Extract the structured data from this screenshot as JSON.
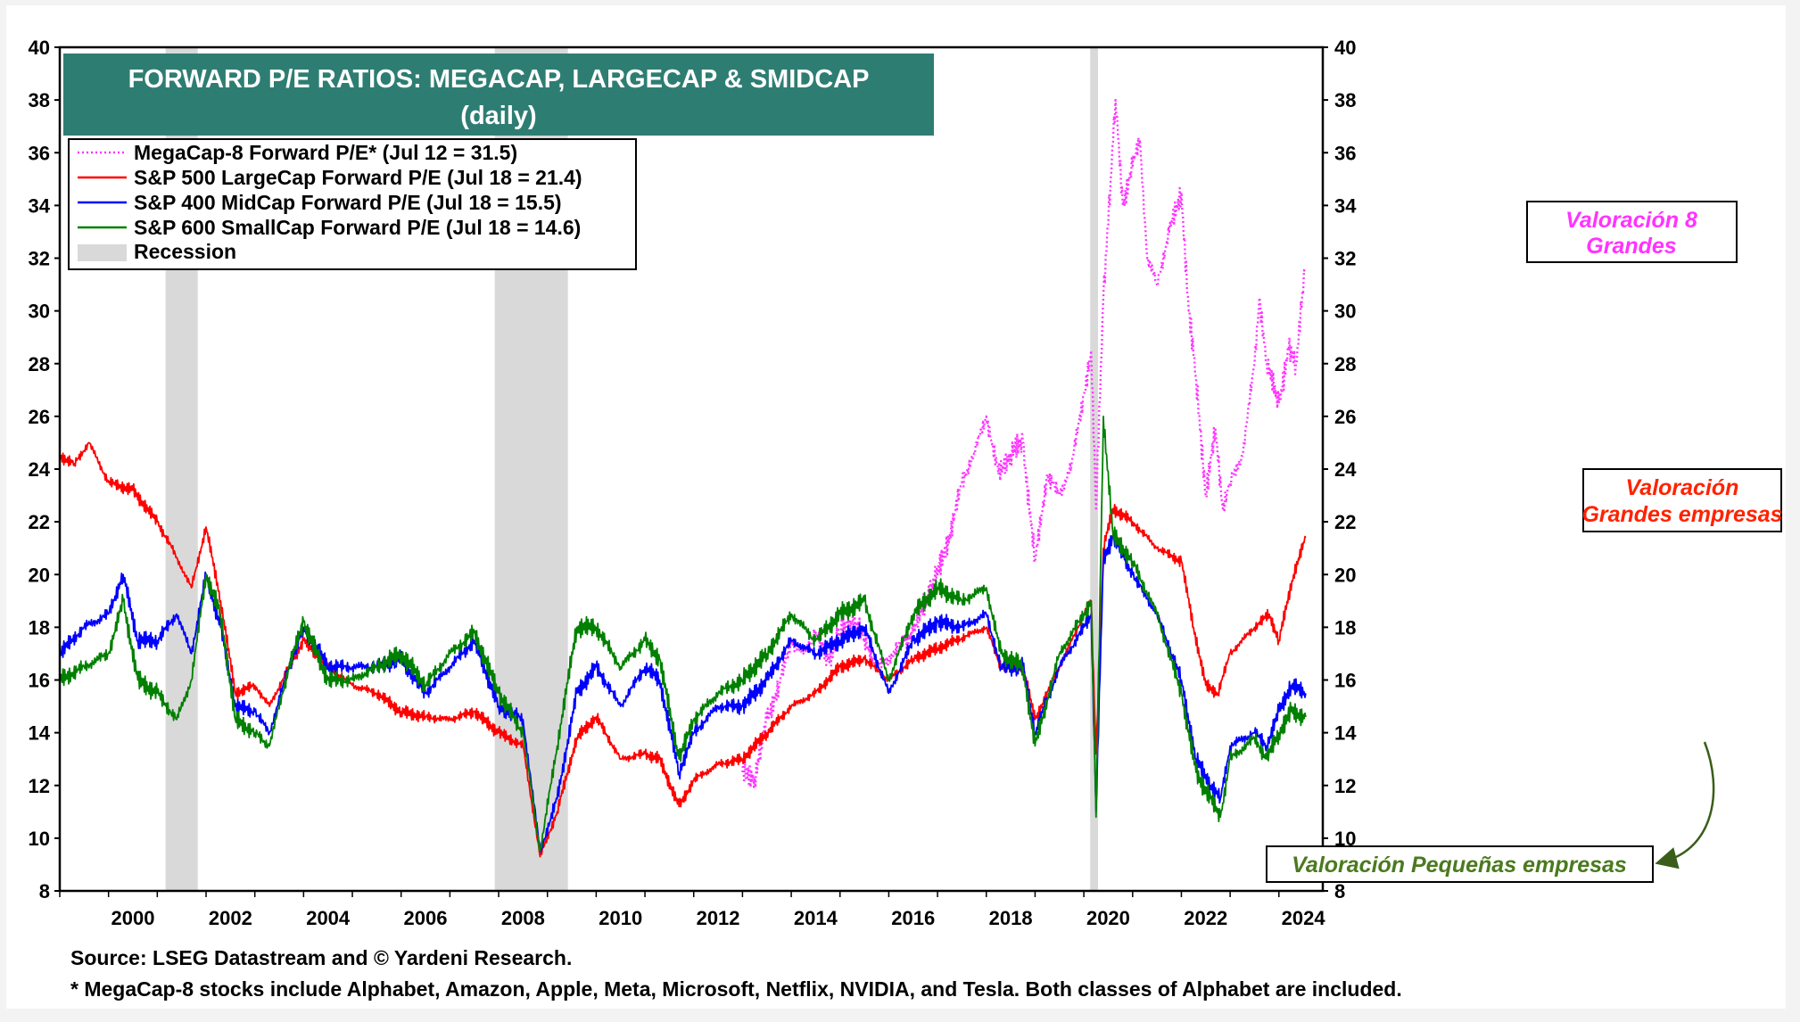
{
  "title_line1": "FORWARD P/E RATIOS: MEGACAP, LARGECAP & SMIDCAP",
  "title_line2": "(daily)",
  "source": "Source: LSEG Datastream and © Yardeni Research.",
  "footnote": "* MegaCap-8 stocks include Alphabet, Amazon, Apple, Meta, Microsoft, Netflix, NVIDIA, and Tesla. Both classes of Alphabet are included.",
  "annotations": {
    "mega": [
      "Valoración 8",
      "Grandes"
    ],
    "large": [
      "Valoración",
      "Grandes empresas"
    ],
    "small": "Valoración Pequeñas empresas"
  },
  "colors": {
    "mega": "#ff33ff",
    "large": "#ff0000",
    "mid": "#0000ff",
    "small": "#008000",
    "recession": "#d9d9d9",
    "title_bg": "#2e7d73",
    "note_mega": "#ff33ff",
    "note_large": "#ff2200",
    "note_small": "#4a7a1e",
    "arrow": "#3a5e1a"
  },
  "chart_data": {
    "type": "line",
    "x_unit": "year",
    "xlim": [
      1999.0,
      2024.9
    ],
    "ylim": [
      8,
      40
    ],
    "y_ticks": [
      8,
      10,
      12,
      14,
      16,
      18,
      20,
      22,
      24,
      26,
      28,
      30,
      32,
      34,
      36,
      38,
      40
    ],
    "x_ticks": [
      2000,
      2002,
      2004,
      2006,
      2008,
      2010,
      2012,
      2014,
      2016,
      2018,
      2020,
      2022,
      2024
    ],
    "grid": false,
    "dual_y_axis": true,
    "legend_position": "top-left",
    "recessions": [
      [
        2001.17,
        2001.83
      ],
      [
        2007.92,
        2009.42
      ],
      [
        2020.13,
        2020.29
      ]
    ],
    "recession_label": "Recession",
    "series": [
      {
        "name": "MegaCap-8 Forward P/E* (Jul 12 = 31.5)",
        "key": "mega",
        "style": "dotted",
        "x": [
          2013.0,
          2013.25,
          2013.5,
          2013.75,
          2014.0,
          2014.25,
          2014.5,
          2014.75,
          2015.0,
          2015.25,
          2015.5,
          2015.75,
          2016.0,
          2016.25,
          2016.5,
          2016.75,
          2017.0,
          2017.25,
          2017.5,
          2017.75,
          2018.0,
          2018.25,
          2018.5,
          2018.75,
          2019.0,
          2019.25,
          2019.5,
          2019.75,
          2020.0,
          2020.15,
          2020.25,
          2020.4,
          2020.55,
          2020.65,
          2020.8,
          2021.0,
          2021.15,
          2021.3,
          2021.5,
          2021.75,
          2022.0,
          2022.15,
          2022.3,
          2022.5,
          2022.7,
          2022.85,
          2023.0,
          2023.25,
          2023.5,
          2023.6,
          2023.75,
          2024.0,
          2024.2,
          2024.35,
          2024.53
        ],
        "y": [
          12.5,
          12.3,
          14.5,
          15.8,
          17.5,
          17.0,
          17.8,
          16.8,
          17.8,
          18.2,
          17.6,
          16.5,
          16.8,
          17.4,
          17.8,
          19.0,
          20.0,
          21.5,
          23.5,
          24.6,
          26.0,
          23.8,
          24.6,
          25.0,
          20.5,
          23.8,
          23.0,
          24.2,
          26.8,
          28.5,
          22.5,
          30.5,
          35.0,
          38.0,
          34.0,
          35.5,
          36.5,
          32.0,
          31.0,
          33.0,
          34.5,
          30.0,
          27.5,
          23.0,
          25.5,
          22.5,
          23.5,
          24.5,
          28.0,
          30.5,
          28.0,
          26.5,
          28.5,
          28.0,
          31.5
        ]
      },
      {
        "name": "S&P 500 LargeCap Forward P/E (Jul 18 = 21.4)",
        "key": "large",
        "style": "solid",
        "x": [
          1999.0,
          1999.3,
          1999.6,
          2000.0,
          2000.5,
          2001.0,
          2001.3,
          2001.7,
          2002.0,
          2002.3,
          2002.6,
          2003.0,
          2003.3,
          2003.7,
          2004.0,
          2004.5,
          2005.0,
          2005.5,
          2006.0,
          2006.5,
          2007.0,
          2007.5,
          2008.0,
          2008.5,
          2008.85,
          2009.2,
          2009.6,
          2010.0,
          2010.5,
          2011.0,
          2011.3,
          2011.7,
          2012.0,
          2012.5,
          2013.0,
          2013.5,
          2014.0,
          2014.5,
          2015.0,
          2015.5,
          2016.0,
          2016.5,
          2017.0,
          2017.5,
          2018.0,
          2018.3,
          2018.75,
          2019.0,
          2019.5,
          2020.0,
          2020.15,
          2020.25,
          2020.4,
          2020.6,
          2021.0,
          2021.5,
          2022.0,
          2022.25,
          2022.5,
          2022.75,
          2023.0,
          2023.5,
          2023.8,
          2024.0,
          2024.3,
          2024.55
        ],
        "y": [
          24.5,
          24.2,
          25.0,
          23.5,
          23.2,
          22.0,
          21.0,
          19.5,
          21.8,
          19.0,
          15.5,
          15.8,
          15.0,
          16.5,
          17.5,
          16.5,
          15.8,
          15.5,
          14.8,
          14.6,
          14.5,
          14.8,
          14.0,
          13.5,
          9.3,
          11.0,
          13.8,
          14.6,
          13.0,
          13.2,
          13.0,
          11.2,
          12.2,
          12.8,
          13.0,
          14.0,
          15.0,
          15.5,
          16.5,
          16.8,
          16.0,
          16.8,
          17.2,
          17.6,
          18.0,
          16.5,
          16.5,
          14.5,
          16.5,
          18.5,
          19.0,
          13.2,
          21.0,
          22.5,
          22.0,
          21.0,
          20.5,
          18.0,
          15.8,
          15.5,
          17.0,
          18.0,
          18.5,
          17.5,
          20.0,
          21.4
        ]
      },
      {
        "name": "S&P 400 MidCap Forward P/E (Jul 18 = 15.5)",
        "key": "mid",
        "style": "solid",
        "x": [
          1999.0,
          1999.5,
          2000.0,
          2000.3,
          2000.6,
          2001.0,
          2001.4,
          2001.7,
          2002.0,
          2002.3,
          2002.6,
          2003.0,
          2003.3,
          2003.7,
          2004.0,
          2004.5,
          2005.0,
          2005.5,
          2006.0,
          2006.5,
          2007.0,
          2007.5,
          2008.0,
          2008.5,
          2008.85,
          2009.2,
          2009.6,
          2010.0,
          2010.5,
          2011.0,
          2011.3,
          2011.7,
          2012.0,
          2012.5,
          2013.0,
          2013.5,
          2014.0,
          2014.5,
          2015.0,
          2015.5,
          2016.0,
          2016.5,
          2017.0,
          2017.5,
          2018.0,
          2018.3,
          2018.75,
          2019.0,
          2019.5,
          2020.0,
          2020.15,
          2020.25,
          2020.4,
          2020.6,
          2021.0,
          2021.5,
          2022.0,
          2022.3,
          2022.6,
          2022.8,
          2023.0,
          2023.5,
          2023.75,
          2024.0,
          2024.25,
          2024.55
        ],
        "y": [
          17.0,
          18.0,
          18.5,
          20.0,
          17.5,
          17.5,
          18.5,
          17.0,
          20.0,
          18.0,
          15.0,
          14.8,
          14.0,
          16.5,
          18.0,
          16.5,
          16.5,
          16.5,
          16.8,
          15.5,
          16.5,
          17.5,
          15.0,
          14.5,
          9.5,
          11.5,
          15.5,
          16.5,
          15.0,
          16.5,
          16.0,
          12.5,
          14.0,
          15.0,
          15.0,
          16.0,
          17.5,
          17.0,
          17.5,
          18.0,
          15.5,
          17.5,
          18.2,
          18.0,
          18.5,
          16.5,
          16.5,
          14.0,
          16.5,
          18.0,
          18.5,
          11.0,
          20.5,
          21.5,
          20.0,
          18.5,
          16.0,
          13.0,
          12.0,
          11.5,
          13.5,
          14.0,
          13.5,
          14.8,
          15.8,
          15.5
        ]
      },
      {
        "name": "S&P 600 SmallCap Forward P/E (Jul 18 = 14.6)",
        "key": "small",
        "style": "solid",
        "x": [
          1999.0,
          1999.5,
          2000.0,
          2000.3,
          2000.6,
          2001.0,
          2001.4,
          2001.7,
          2002.0,
          2002.3,
          2002.6,
          2003.0,
          2003.3,
          2003.7,
          2004.0,
          2004.5,
          2005.0,
          2005.5,
          2006.0,
          2006.5,
          2007.0,
          2007.5,
          2008.0,
          2008.5,
          2008.85,
          2009.2,
          2009.6,
          2010.0,
          2010.5,
          2011.0,
          2011.3,
          2011.7,
          2012.0,
          2012.5,
          2013.0,
          2013.5,
          2014.0,
          2014.5,
          2015.0,
          2015.5,
          2016.0,
          2016.5,
          2017.0,
          2017.5,
          2018.0,
          2018.3,
          2018.75,
          2019.0,
          2019.5,
          2020.0,
          2020.15,
          2020.25,
          2020.4,
          2020.6,
          2021.0,
          2021.5,
          2022.0,
          2022.3,
          2022.6,
          2022.8,
          2023.0,
          2023.5,
          2023.75,
          2024.0,
          2024.25,
          2024.55
        ],
        "y": [
          16.0,
          16.5,
          17.0,
          19.0,
          16.0,
          15.5,
          14.5,
          16.0,
          20.0,
          18.5,
          14.5,
          14.0,
          13.5,
          16.5,
          18.2,
          16.0,
          16.0,
          16.5,
          17.0,
          15.8,
          17.0,
          17.8,
          15.5,
          14.0,
          9.5,
          13.5,
          18.0,
          18.0,
          16.5,
          17.5,
          16.8,
          13.0,
          14.5,
          15.5,
          16.0,
          17.0,
          18.5,
          17.5,
          18.5,
          19.0,
          16.0,
          18.5,
          19.5,
          19.0,
          19.5,
          17.0,
          16.5,
          13.5,
          17.0,
          18.5,
          19.0,
          10.8,
          26.0,
          21.5,
          20.5,
          18.5,
          15.5,
          12.5,
          11.5,
          10.8,
          13.0,
          13.8,
          13.0,
          14.0,
          14.8,
          14.6
        ]
      }
    ]
  }
}
